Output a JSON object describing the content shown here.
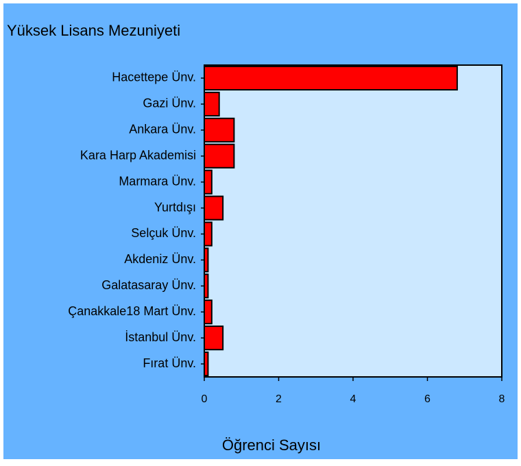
{
  "chart_data": {
    "type": "bar",
    "orientation": "horizontal",
    "title": "Yüksek Lisans Mezuniyeti",
    "x_label": "Öğrenci Sayısı",
    "categories": [
      "Hacettepe Ünv.",
      "Gazi Ünv.",
      "Ankara Ünv.",
      "Kara Harp Akademisi",
      "Marmara Ünv.",
      "Yurtdışı",
      "Selçuk Ünv.",
      "Akdeniz Ünv.",
      "Galatasaray Ünv.",
      "Çanakkale18 Mart Ünv.",
      "İstanbul Ünv.",
      "Fırat Ünv."
    ],
    "values": [
      6.8,
      0.4,
      0.8,
      0.8,
      0.2,
      0.5,
      0.2,
      0.1,
      0.1,
      0.2,
      0.5,
      0.1
    ],
    "color": "#ff0000",
    "xlim": [
      0,
      8
    ],
    "xticks": [
      0,
      2,
      4,
      6,
      8
    ]
  }
}
